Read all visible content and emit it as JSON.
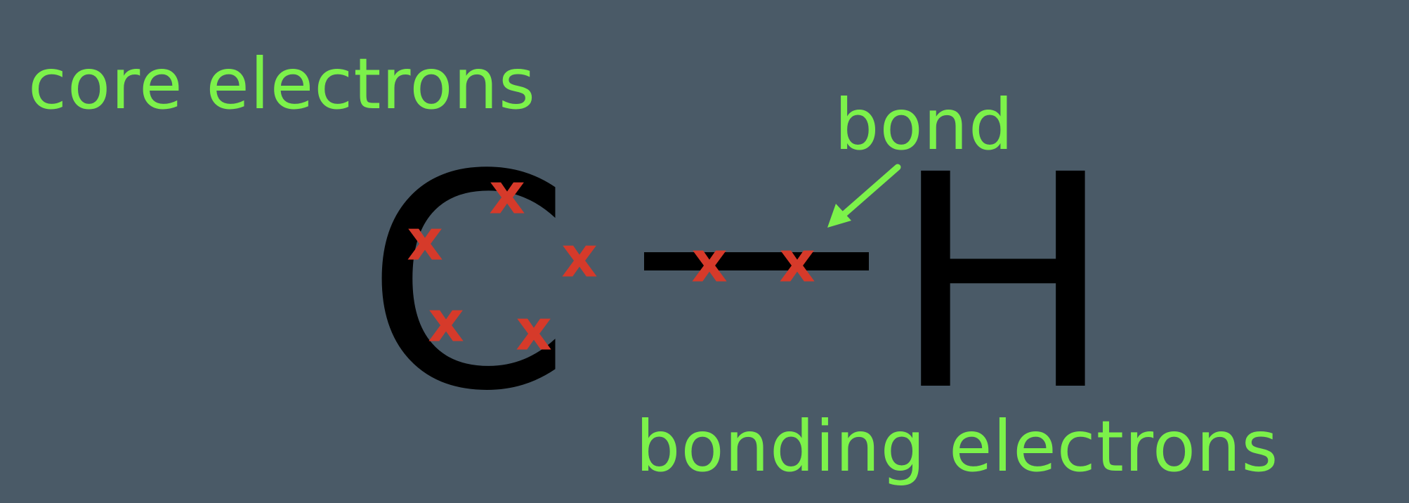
{
  "labels": {
    "core": "core electrons",
    "bond": "bond",
    "bonding": "bonding electrons"
  },
  "atoms": {
    "left": "C",
    "right": "H"
  },
  "electron_marker": "x",
  "colors": {
    "background": "#4a5a67",
    "label": "#7cf24a",
    "atom": "#000000",
    "electron": "#d63a2a",
    "arrow": "#7cf24a"
  }
}
